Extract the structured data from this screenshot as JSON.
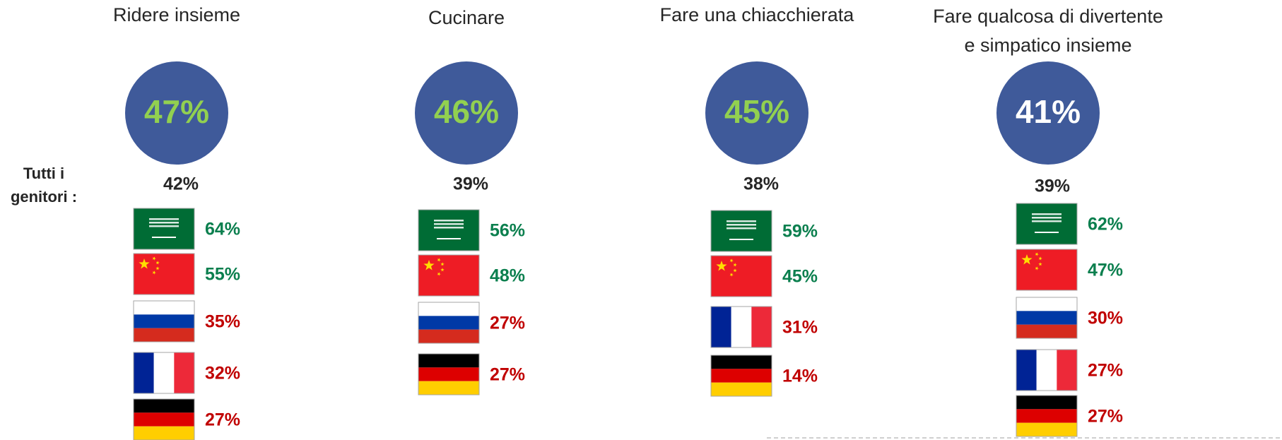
{
  "row_label": [
    "Tutti i",
    "genitori :"
  ],
  "panels": [
    {
      "title": [
        "Ridere insieme"
      ],
      "main": "47%",
      "main_color": "#92d050",
      "all_parents": "42%",
      "countries": [
        {
          "value": "64%",
          "color": "#0b7f4e"
        },
        {
          "value": "55%",
          "color": "#0b7f4e"
        },
        {
          "value": "35%",
          "color": "#c00000"
        },
        {
          "value": "32%",
          "color": "#c00000"
        },
        {
          "value": "27%",
          "color": "#c00000"
        }
      ]
    },
    {
      "title": [
        "Cucinare"
      ],
      "main": "46%",
      "main_color": "#92d050",
      "all_parents": "39%",
      "countries": [
        {
          "value": "56%",
          "color": "#0b7f4e"
        },
        {
          "value": "48%",
          "color": "#0b7f4e"
        },
        {
          "value": "27%",
          "color": "#c00000"
        },
        {
          "value": "27%",
          "color": "#c00000"
        }
      ]
    },
    {
      "title": [
        "Fare una chiacchierata"
      ],
      "main": "45%",
      "main_color": "#92d050",
      "all_parents": "38%",
      "countries": [
        {
          "value": "59%",
          "color": "#0b7f4e"
        },
        {
          "value": "45%",
          "color": "#0b7f4e"
        },
        {
          "value": "31%",
          "color": "#c00000"
        },
        {
          "value": "14%",
          "color": "#c00000"
        }
      ]
    },
    {
      "title": [
        "Fare qualcosa di divertente",
        "e simpatico insieme"
      ],
      "main": "41%",
      "main_color": "#ffffff",
      "all_parents": "39%",
      "countries": [
        {
          "value": "62%",
          "color": "#0b7f4e"
        },
        {
          "value": "47%",
          "color": "#0b7f4e"
        },
        {
          "value": "30%",
          "color": "#c00000"
        },
        {
          "value": "27%",
          "color": "#c00000"
        },
        {
          "value": "27%",
          "color": "#c00000"
        }
      ]
    }
  ]
}
